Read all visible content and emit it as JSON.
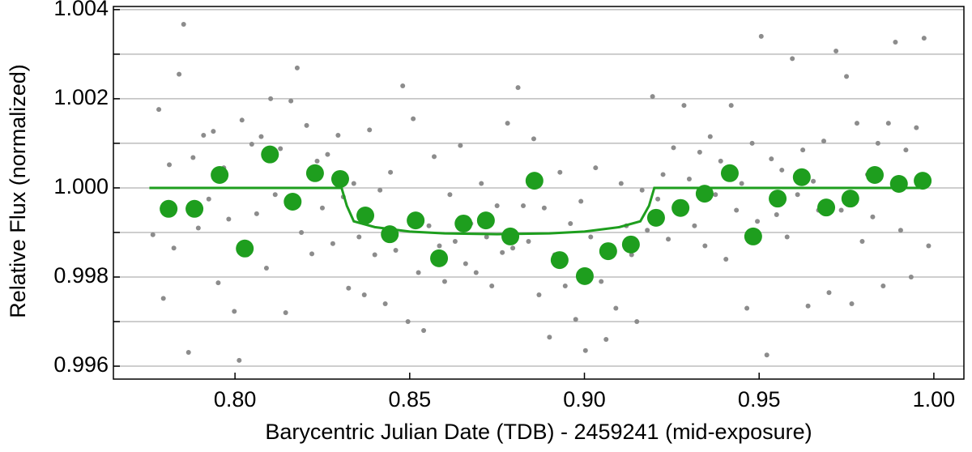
{
  "chart_data": {
    "type": "scatter",
    "xlabel": "Barycentric Julian Date (TDB) - 2459241 (mid-exposure)",
    "ylabel": "Relative Flux (normalized)",
    "xlim": [
      0.7652,
      1.0086
    ],
    "ylim": [
      0.99571,
      1.00407
    ],
    "xticks": [
      {
        "value": 0.8,
        "label": "0.80"
      },
      0.85,
      {
        "value": 0.9,
        "label": "0.90"
      },
      0.95,
      {
        "value": 1.0,
        "label": "1.00"
      }
    ],
    "yticks": [
      {
        "value": 0.996,
        "label": "0.996"
      },
      {
        "value": 0.998,
        "label": "0.998"
      },
      {
        "value": 1.0,
        "label": "1.000"
      },
      {
        "value": 1.002,
        "label": "1.002"
      },
      {
        "value": 1.004,
        "label": "1.004"
      }
    ],
    "y_minor_ticks": [
      0.997,
      0.999,
      1.001,
      1.003
    ],
    "grid": true,
    "series": [
      {
        "type": "scatter",
        "color": "#8c8c8c",
        "x": [
          0.7765,
          0.7782,
          0.7795,
          0.7812,
          0.7825,
          0.784,
          0.7853,
          0.7867,
          0.788,
          0.7895,
          0.791,
          0.7925,
          0.7938,
          0.7952,
          0.7968,
          0.7982,
          0.7998,
          0.8012,
          0.802,
          0.8035,
          0.8048,
          0.8062,
          0.8075,
          0.809,
          0.8102,
          0.8115,
          0.813,
          0.8145,
          0.816,
          0.8178,
          0.819,
          0.8205,
          0.822,
          0.8235,
          0.825,
          0.8265,
          0.828,
          0.8295,
          0.831,
          0.8325,
          0.834,
          0.8355,
          0.837,
          0.8385,
          0.84,
          0.8415,
          0.843,
          0.8445,
          0.846,
          0.848,
          0.8495,
          0.851,
          0.8525,
          0.854,
          0.8555,
          0.857,
          0.8585,
          0.86,
          0.8615,
          0.863,
          0.8645,
          0.866,
          0.8675,
          0.869,
          0.8705,
          0.872,
          0.8735,
          0.875,
          0.8765,
          0.878,
          0.8795,
          0.881,
          0.8825,
          0.884,
          0.8855,
          0.887,
          0.8885,
          0.89,
          0.8915,
          0.893,
          0.8945,
          0.896,
          0.8975,
          0.899,
          0.9003,
          0.9018,
          0.9032,
          0.9048,
          0.9062,
          0.9075,
          0.909,
          0.9105,
          0.912,
          0.9135,
          0.915,
          0.9165,
          0.918,
          0.9195,
          0.921,
          0.9225,
          0.924,
          0.9255,
          0.927,
          0.9285,
          0.93,
          0.9315,
          0.933,
          0.9345,
          0.936,
          0.9375,
          0.939,
          0.9405,
          0.942,
          0.9435,
          0.945,
          0.9465,
          0.948,
          0.9495,
          0.9506,
          0.9522,
          0.9535,
          0.955,
          0.9565,
          0.958,
          0.9595,
          0.961,
          0.9625,
          0.964,
          0.9655,
          0.967,
          0.9685,
          0.97,
          0.972,
          0.9735,
          0.975,
          0.9765,
          0.978,
          0.9795,
          0.981,
          0.9825,
          0.984,
          0.9855,
          0.987,
          0.989,
          0.9905,
          0.992,
          0.9935,
          0.995,
          0.9972,
          0.9985
        ],
        "values": [
          0.99895,
          1.00176,
          0.99752,
          1.00052,
          0.99865,
          1.00255,
          1.00367,
          0.99631,
          1.00068,
          0.9991,
          1.00118,
          0.99975,
          1.00127,
          0.99787,
          1.00045,
          0.9993,
          0.99723,
          0.99613,
          1.00152,
          0.9985,
          1.00098,
          0.99942,
          1.00115,
          0.9982,
          1.002,
          0.99985,
          1.00088,
          0.9972,
          1.00195,
          1.00269,
          0.999,
          1.0014,
          0.99852,
          1.0006,
          0.99955,
          1.00075,
          0.99875,
          1.00118,
          0.9998,
          0.99775,
          1.0001,
          0.9989,
          0.9976,
          1.0013,
          0.9985,
          0.99995,
          0.9974,
          1.00035,
          0.9986,
          1.00229,
          0.997,
          1.00155,
          0.9981,
          0.9968,
          0.99915,
          1.0007,
          0.9987,
          0.9979,
          0.99985,
          0.9988,
          1.00095,
          0.9983,
          0.9992,
          0.9981,
          1.0001,
          0.9989,
          0.9978,
          0.9996,
          0.99855,
          1.00145,
          0.99865,
          1.00225,
          0.9996,
          0.9988,
          1.0011,
          0.9976,
          0.99955,
          0.99665,
          0.9985,
          1.00035,
          0.9978,
          0.9992,
          0.99705,
          0.9997,
          0.99635,
          0.9989,
          1.00045,
          0.9979,
          0.9966,
          0.99855,
          0.9973,
          1.0001,
          0.99915,
          0.9985,
          0.997,
          0.99995,
          0.99905,
          1.00205,
          0.99975,
          1.0003,
          0.99885,
          1.0009,
          0.9996,
          1.00185,
          1.0002,
          0.99915,
          1.0008,
          0.9987,
          1.00115,
          0.99985,
          1.0006,
          0.9984,
          1.00185,
          0.9995,
          1.0001,
          0.9973,
          1.001,
          0.99925,
          1.0034,
          0.99625,
          1.00065,
          0.9994,
          1.0004,
          0.9989,
          1.0029,
          0.99985,
          1.00085,
          0.99735,
          1.00015,
          0.9995,
          1.00105,
          0.99765,
          1.00307,
          0.9995,
          1.0025,
          0.9974,
          1.00145,
          0.9988,
          1.0003,
          0.99935,
          1.001,
          0.9978,
          1.00145,
          1.00327,
          0.99905,
          1.00085,
          0.998,
          1.00135,
          1.00336,
          0.9987
        ]
      },
      {
        "type": "scatter",
        "color": "#1e9e1e",
        "x": [
          0.781,
          0.7884,
          0.7956,
          0.8028,
          0.81,
          0.8165,
          0.8229,
          0.8301,
          0.8373,
          0.8443,
          0.8517,
          0.8584,
          0.8654,
          0.8718,
          0.8788,
          0.8857,
          0.8929,
          0.9001,
          0.9068,
          0.9133,
          0.9205,
          0.9275,
          0.9344,
          0.9416,
          0.9483,
          0.9553,
          0.9622,
          0.9692,
          0.9761,
          0.9831,
          0.99,
          0.9968
        ],
        "values": [
          0.99953,
          0.99953,
          1.00029,
          0.99864,
          1.00075,
          0.99969,
          1.00033,
          1.0002,
          0.99938,
          0.99896,
          0.99927,
          0.99842,
          0.9992,
          0.99927,
          0.99891,
          1.00016,
          0.99838,
          0.99802,
          0.99858,
          0.99873,
          0.99933,
          0.99955,
          0.99987,
          1.00033,
          0.99891,
          0.99976,
          1.00024,
          0.99956,
          0.99976,
          1.00029,
          1.00009,
          1.00016
        ]
      },
      {
        "type": "line",
        "color": "#1e9e1e",
        "x": [
          0.7755,
          0.8305,
          0.832,
          0.834,
          0.84,
          0.85,
          0.86,
          0.875,
          0.89,
          0.9,
          0.91,
          0.916,
          0.9185,
          0.92,
          0.9968
        ],
        "values": [
          1.0,
          1.0,
          0.9996,
          0.99925,
          0.99912,
          0.99902,
          0.99898,
          0.99896,
          0.99898,
          0.99902,
          0.99912,
          0.99925,
          0.9996,
          1.0,
          1.0
        ]
      }
    ]
  }
}
